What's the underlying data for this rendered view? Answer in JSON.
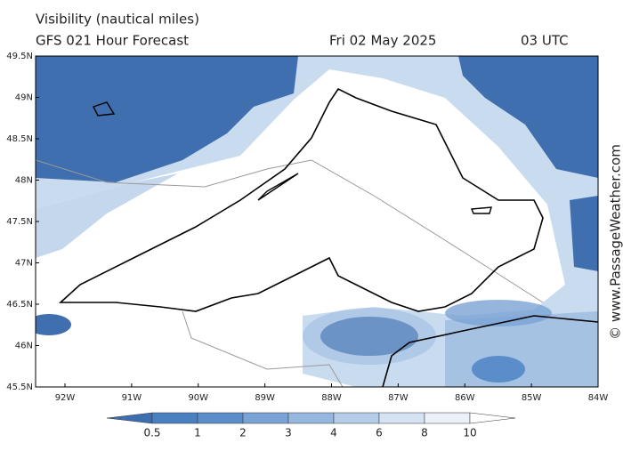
{
  "header": {
    "title": "Visibility (nautical miles)",
    "subtitle": "GFS 021 Hour Forecast",
    "date": "Fri 02 May 2025",
    "time": "03 UTC"
  },
  "map": {
    "lat_ticks": [
      "49.5N",
      "49N",
      "48.5N",
      "48N",
      "47.5N",
      "47N",
      "46.5N",
      "46N",
      "45.5N"
    ],
    "lon_ticks": [
      "92W",
      "91W",
      "90W",
      "89W",
      "88W",
      "87W",
      "86W",
      "85W",
      "84W"
    ]
  },
  "colorbar": {
    "levels": [
      0.5,
      1,
      2,
      3,
      4,
      6,
      8,
      10
    ],
    "colors": [
      "#3d6fb0",
      "#4a7fc0",
      "#5b8dca",
      "#7aa3d5",
      "#97b8de",
      "#b5cde8",
      "#d4e2f2",
      "#eaf1f9",
      "#ffffff"
    ]
  },
  "copyright": "© www.PassageWeather.com"
}
